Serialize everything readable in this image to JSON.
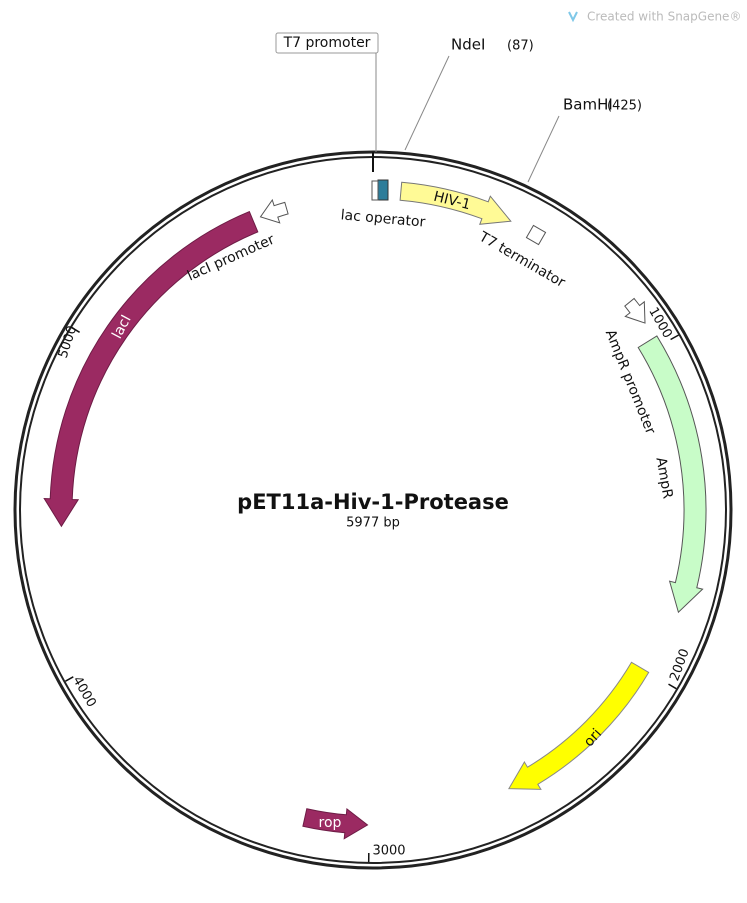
{
  "watermark": "Created with SnapGene®",
  "title": "pET11a-Hiv-1-Protease",
  "length": "5977 bp",
  "sites": [
    {
      "name": "NdeI",
      "position": "(87)"
    },
    {
      "name": "BamHI",
      "position": "(425)"
    }
  ],
  "features": {
    "t7_promoter": "T7 promoter",
    "lac_operator": "lac operator",
    "hiv1": "HIV-1",
    "t7_terminator": "T7 terminator",
    "amp_promoter": "AmpR promoter",
    "ampr": "AmpR",
    "ori": "ori",
    "rop": "rop",
    "laci": "lacI",
    "laci_promoter": "lacI promoter"
  },
  "ticks": [
    "1000",
    "2000",
    "3000",
    "4000",
    "5000"
  ]
}
